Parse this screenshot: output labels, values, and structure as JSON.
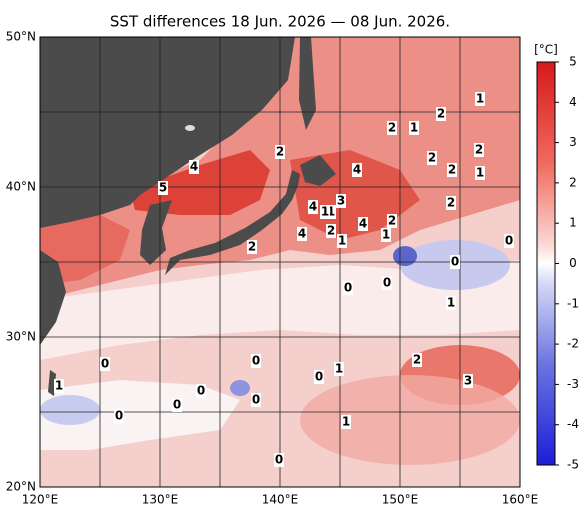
{
  "title": "SST differences 18 Jun. 2026 — 08 Jun. 2026.",
  "x_axis_labels": [
    "120°E",
    "130°E",
    "140°E",
    "150°E",
    "160°E"
  ],
  "y_axis_labels": [
    "50°N",
    "40°N",
    "30°N",
    "20°N"
  ],
  "colorbar": {
    "unit": "[°C]",
    "ticks": [
      5,
      4,
      3,
      2,
      1,
      0,
      -1,
      -2,
      -3,
      -4,
      -5
    ]
  },
  "contour_labels": [
    "1",
    "2",
    "2",
    "1",
    "2",
    "4",
    "2",
    "2",
    "2",
    "1",
    "4",
    "5",
    "2",
    "3",
    "4",
    "1",
    "1",
    "2",
    "4",
    "4",
    "2",
    "1",
    "1",
    "2",
    "0",
    "0",
    "0",
    "0",
    "1",
    "2",
    "3",
    "0",
    "0",
    "1",
    "0",
    "0",
    "1",
    "0",
    "0",
    "0",
    "1",
    "0"
  ]
}
